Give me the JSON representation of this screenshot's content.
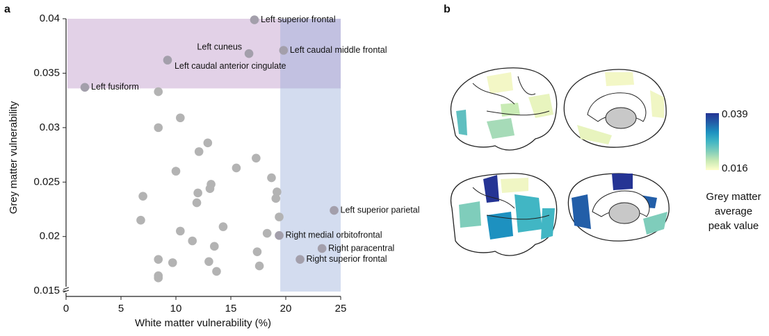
{
  "panel_labels": [
    "a",
    "b"
  ],
  "chart_data": [
    {
      "type": "scatter",
      "x_label": "White matter vulnerability (%)",
      "y_label": "Grey matter vulnerability",
      "xlim": [
        0,
        25
      ],
      "ylim": [
        0.0145,
        0.04
      ],
      "xticks": [
        0,
        5,
        10,
        15,
        20,
        25
      ],
      "yticks": [
        0.015,
        0.02,
        0.025,
        0.03,
        0.035,
        0.04
      ],
      "x_threshold": 19.5,
      "y_threshold": 0.0336,
      "region_colors": [
        "rgba(186,146,198,0.42)",
        "rgba(150,172,216,0.42)"
      ],
      "color": "#b3b3b3",
      "highlight_color": "#a39fab",
      "labels": [
        "Left superior frontal",
        "Left cuneus",
        "Left caudal middle frontal",
        "Left caudal anterior cingulate",
        "Left fusiform",
        "Left superior parietal",
        "Right medial orbitofrontal",
        "Right paracentral",
        "Right superior frontal",
        null,
        null,
        null,
        null,
        null,
        null,
        null,
        null,
        null,
        null,
        null,
        null,
        null,
        null,
        null,
        null,
        null,
        null,
        null,
        null,
        null,
        null,
        null,
        null,
        null,
        null,
        null,
        null,
        null,
        null,
        null
      ],
      "x": [
        17.15,
        16.65,
        19.8,
        9.24,
        1.71,
        24.4,
        19.4,
        23.3,
        21.3,
        8.4,
        8.4,
        10.4,
        12.9,
        12.1,
        10.0,
        15.5,
        17.3,
        18.7,
        13.2,
        13.1,
        12.0,
        19.2,
        19.1,
        7.0,
        11.9,
        6.8,
        19.4,
        14.3,
        10.4,
        18.3,
        11.5,
        13.5,
        17.4,
        8.4,
        9.7,
        13.0,
        17.6,
        13.7,
        8.4,
        8.4
      ],
      "values": [
        0.0399,
        0.0368,
        0.0371,
        0.0362,
        0.0337,
        0.0224,
        0.0201,
        0.0189,
        0.0179,
        0.0333,
        0.03,
        0.0309,
        0.0286,
        0.0278,
        0.026,
        0.0263,
        0.0272,
        0.0254,
        0.0248,
        0.0244,
        0.024,
        0.0241,
        0.0235,
        0.0237,
        0.0231,
        0.0215,
        0.0218,
        0.0209,
        0.0205,
        0.0203,
        0.0196,
        0.0191,
        0.0186,
        0.0179,
        0.0176,
        0.0177,
        0.0173,
        0.0168,
        0.0164,
        0.0162
      ]
    },
    {
      "type": "colorbar",
      "clim": [
        0.016,
        0.039
      ],
      "ticks": [
        0.039,
        0.016
      ],
      "colors": [
        "#ffffcc",
        "#c7e9b4",
        "#7fcdbb",
        "#41b6c4",
        "#1d91c0",
        "#225ea8",
        "#253494"
      ],
      "label_lines": [
        "Grey matter",
        "average",
        "peak value"
      ]
    }
  ]
}
